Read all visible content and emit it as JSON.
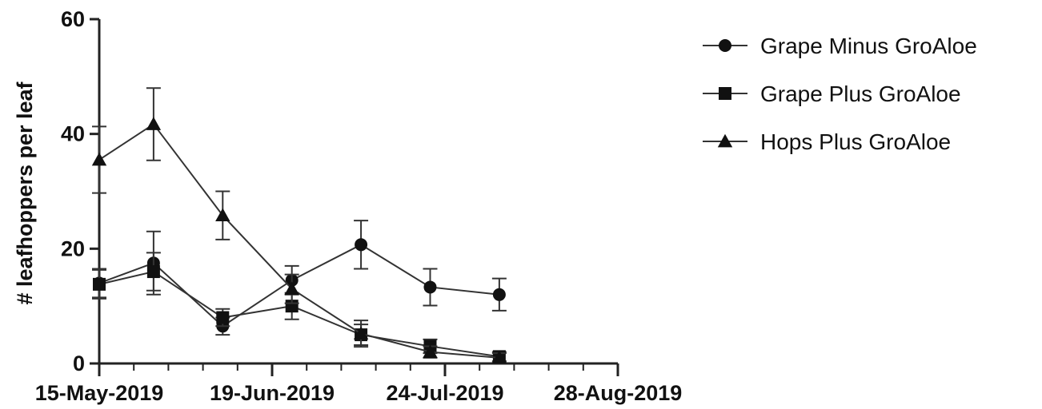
{
  "chart_data": {
    "type": "line",
    "ylabel": "# leafhoppers per leaf",
    "xlabel": "",
    "x_tick_labels": [
      "15-May-2019",
      "19-Jun-2019",
      "24-Jul-2019",
      "28-Aug-2019"
    ],
    "x_tick_dates": [
      "2019-05-15",
      "2019-06-19",
      "2019-07-24",
      "2019-08-28"
    ],
    "x_range": [
      "2019-05-15",
      "2019-08-28"
    ],
    "y_ticks": [
      0,
      20,
      40,
      60
    ],
    "ylim": [
      0,
      60
    ],
    "grid": false,
    "legend_position": "right",
    "series": [
      {
        "name": "Grape Minus GroAloe",
        "marker": "circle",
        "x": [
          "2019-05-15",
          "2019-05-26",
          "2019-06-09",
          "2019-06-23",
          "2019-07-07",
          "2019-07-21",
          "2019-08-04"
        ],
        "y": [
          14,
          17.5,
          6.5,
          14.5,
          20.7,
          13.3,
          12
        ],
        "err": [
          2.5,
          5.5,
          1.5,
          2.5,
          4.2,
          3.2,
          2.8
        ]
      },
      {
        "name": "Grape Plus GroAloe",
        "marker": "square",
        "x": [
          "2019-05-15",
          "2019-05-26",
          "2019-06-09",
          "2019-06-23",
          "2019-07-07",
          "2019-07-21",
          "2019-08-04"
        ],
        "y": [
          13.8,
          16,
          8,
          10,
          5,
          3,
          1.2
        ],
        "err": [
          2.5,
          3.3,
          1.5,
          2.3,
          1.8,
          1.2,
          0.8
        ]
      },
      {
        "name": "Hops Plus GroAloe",
        "marker": "triangle",
        "x": [
          "2019-05-15",
          "2019-05-26",
          "2019-06-09",
          "2019-06-23",
          "2019-07-07",
          "2019-07-21",
          "2019-08-04"
        ],
        "y": [
          35.5,
          41.7,
          25.8,
          13,
          5.2,
          2,
          1
        ],
        "err": [
          5.8,
          6.3,
          4.2,
          2.5,
          2.3,
          1,
          0.8
        ]
      }
    ]
  }
}
